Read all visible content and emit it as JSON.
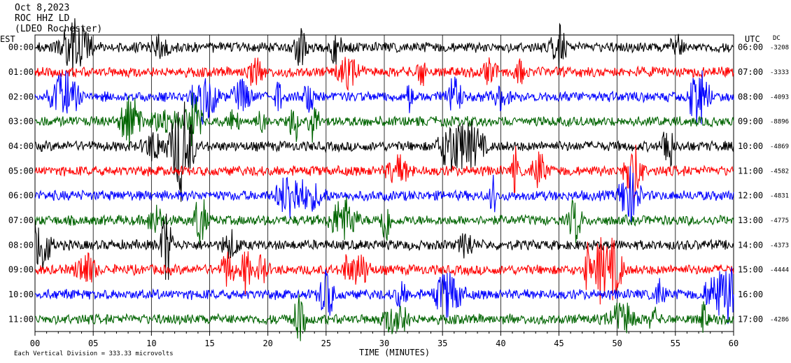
{
  "header": {
    "date": "Oct 8,2023",
    "station": "ROC HHZ LD",
    "network": "(LDEO Rochester)"
  },
  "left_axis_label": "EST",
  "right_axis_label": "UTC",
  "dc_header": "DC",
  "footer": "Each Vertical Division = 333.33 microvolts",
  "chart_data": {
    "type": "line",
    "title": "Oct 8,2023 ROC HHZ LD (LDEO Rochester)",
    "xlabel": "TIME (MINUTES)",
    "xlim": [
      0,
      60
    ],
    "x_ticks": [
      "00",
      "05",
      "10",
      "15",
      "20",
      "25",
      "30",
      "35",
      "40",
      "45",
      "50",
      "55",
      "60"
    ],
    "left_hours": [
      "00:00",
      "01:00",
      "02:00",
      "03:00",
      "04:00",
      "05:00",
      "06:00",
      "07:00",
      "08:00",
      "09:00",
      "10:00",
      "11:00"
    ],
    "right_hours": [
      "06:00",
      "07:00",
      "08:00",
      "09:00",
      "10:00",
      "11:00",
      "12:00",
      "13:00",
      "14:00",
      "15:00",
      "16:00",
      "17:00"
    ],
    "dc_offsets": [
      "-3208",
      "-3333",
      "-4093",
      "-8896",
      "-4869",
      "-4582",
      "-4831",
      "-4775",
      "-4373",
      "-4444",
      "",
      "-4286"
    ],
    "trace_colors": [
      "#000000",
      "#ff0000",
      "#0000ff",
      "#006400"
    ],
    "units": "microvolts",
    "vertical_division": 333.33
  }
}
